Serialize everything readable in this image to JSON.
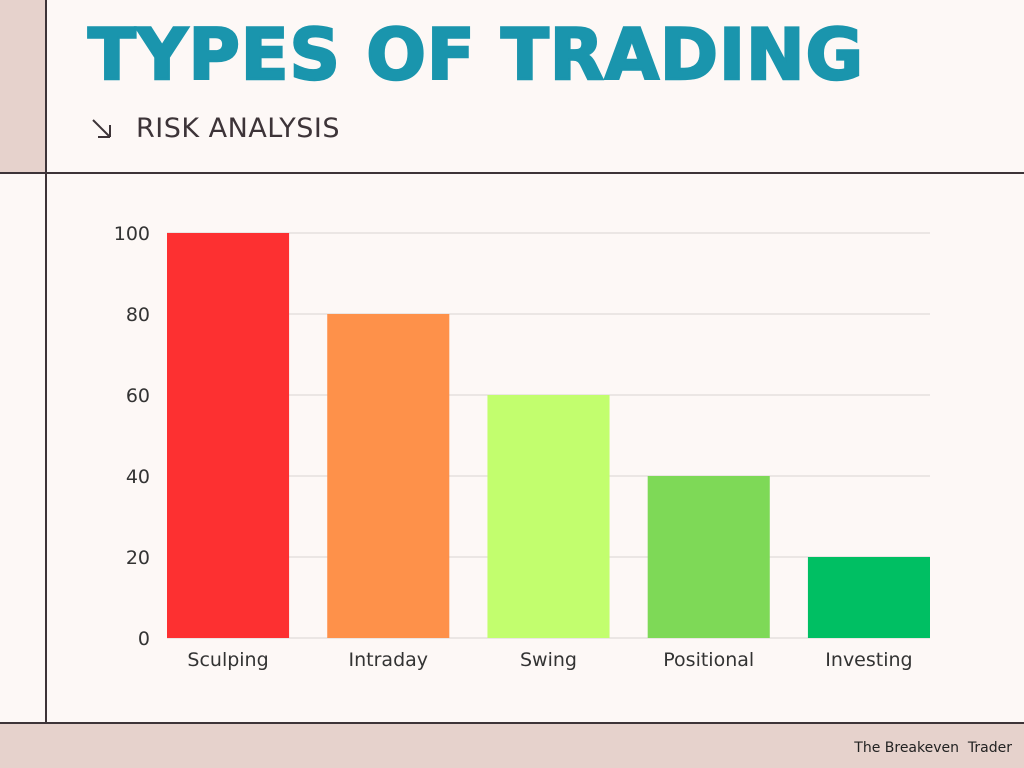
{
  "header": {
    "title": "TYPES OF TRADING",
    "subtitle": "RISK ANALYSIS",
    "subtitle_icon": "arrow-down-right-icon"
  },
  "footer": {
    "credit": "The Breakeven  Trader"
  },
  "colors": {
    "title": "#1a95ad",
    "background": "#fdf8f6",
    "accent_band": "#e6d2cc",
    "rule": "#3d3438"
  },
  "chart_data": {
    "type": "bar",
    "title": "",
    "xlabel": "",
    "ylabel": "",
    "categories": [
      "Sculping",
      "Intraday",
      "Swing",
      "Positional",
      "Investing"
    ],
    "values": [
      100,
      80,
      60,
      40,
      20
    ],
    "bar_colors": [
      "#fd3031",
      "#fe914a",
      "#c2fe6e",
      "#7ed957",
      "#00bf63"
    ],
    "ylim": [
      0,
      100
    ],
    "yticks": [
      0,
      20,
      40,
      60,
      80,
      100
    ],
    "grid": true,
    "legend": "none"
  }
}
